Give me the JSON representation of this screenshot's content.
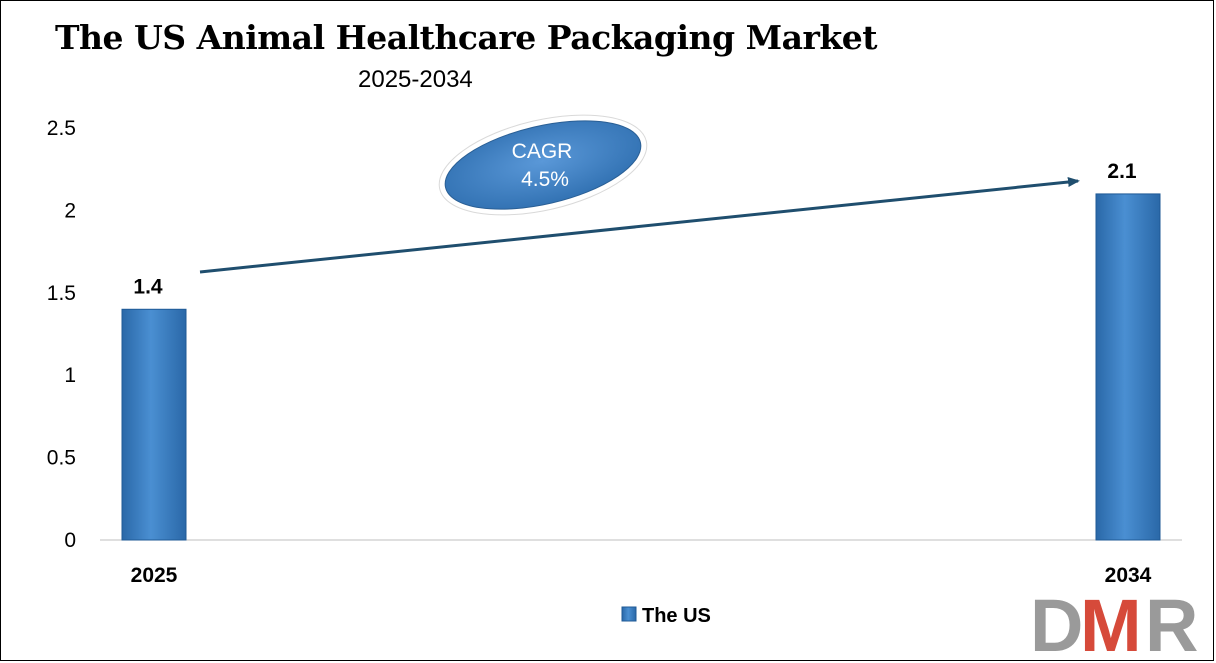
{
  "title": "The US Animal Healthcare Packaging Market",
  "subtitle": "2025-2034",
  "cagr": {
    "label": "CAGR",
    "value": "4.5%"
  },
  "logo": {
    "text": "DMR",
    "colors": {
      "D": "#9a9a9a",
      "M": "#d64a3a",
      "R": "#9a9a9a"
    }
  },
  "colors": {
    "bar": "#3a7cc0",
    "bar_dark": "#1f5a96",
    "arrow": "#1f4e6e",
    "ellipse": "#3a7cc0"
  },
  "chart_data": {
    "type": "bar",
    "categories": [
      "2025",
      "2034"
    ],
    "series": [
      {
        "name": "The US",
        "values": [
          1.4,
          2.1
        ]
      }
    ],
    "data_labels": [
      "1.4",
      "2.1"
    ],
    "y_ticks": [
      "0",
      "0.5",
      "1",
      "1.5",
      "2",
      "2.5"
    ],
    "ylim": [
      0,
      2.5
    ],
    "grid": false,
    "legend_position": "bottom",
    "legend": [
      "The US"
    ]
  }
}
